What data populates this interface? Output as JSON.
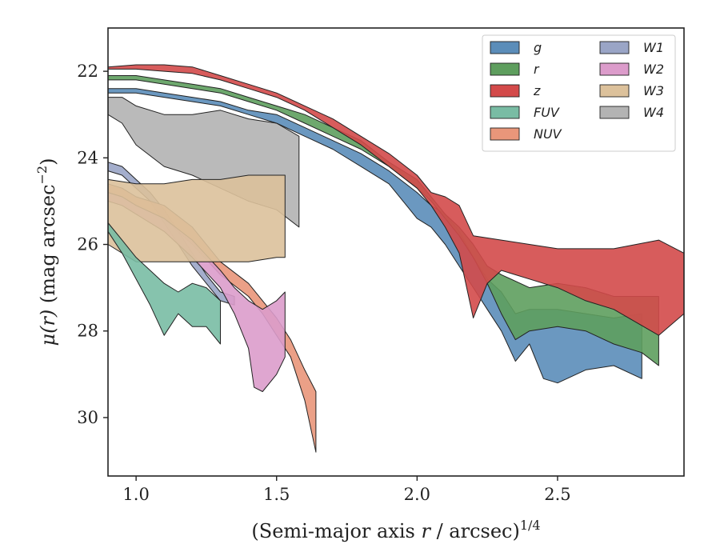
{
  "chart_data": {
    "type": "area",
    "xlabel_main": "(Semi-major axis ",
    "xlabel_var": "r",
    "xlabel_rest": " / arcsec)",
    "xlabel_exp": "1/4",
    "ylabel_var": "μ(r)",
    "ylabel_units": " (mag arcsec",
    "ylabel_exp": "−2",
    "ylabel_close": ")",
    "xlim": [
      0.9,
      2.95
    ],
    "ylim": [
      31.35,
      21.0
    ],
    "y_inverted": true,
    "x_ticks": [
      1.0,
      1.5,
      2.0,
      2.5
    ],
    "x_tick_labels": [
      "1.0",
      "1.5",
      "2.0",
      "2.5"
    ],
    "y_ticks": [
      22,
      24,
      26,
      28,
      30
    ],
    "y_tick_labels": [
      "22",
      "24",
      "26",
      "28",
      "30"
    ],
    "legend_position": "top-right",
    "legend_columns": 2,
    "series": [
      {
        "name": "W4",
        "color": "#b3b3b3",
        "upper": [
          [
            0.9,
            22.6
          ],
          [
            0.95,
            22.6
          ],
          [
            1.0,
            22.8
          ],
          [
            1.1,
            23.0
          ],
          [
            1.2,
            23.0
          ],
          [
            1.3,
            22.9
          ],
          [
            1.4,
            23.1
          ],
          [
            1.5,
            23.2
          ],
          [
            1.58,
            23.5
          ]
        ],
        "lower": [
          [
            0.9,
            23.0
          ],
          [
            0.95,
            23.2
          ],
          [
            1.0,
            23.7
          ],
          [
            1.1,
            24.2
          ],
          [
            1.2,
            24.4
          ],
          [
            1.3,
            24.7
          ],
          [
            1.4,
            25.0
          ],
          [
            1.5,
            25.2
          ],
          [
            1.58,
            25.6
          ]
        ]
      },
      {
        "name": "W1",
        "color": "#9aa5c6",
        "upper": [
          [
            0.9,
            24.1
          ],
          [
            0.95,
            24.2
          ],
          [
            1.0,
            24.5
          ],
          [
            1.05,
            24.8
          ],
          [
            1.1,
            25.2
          ],
          [
            1.15,
            25.7
          ],
          [
            1.2,
            26.2
          ],
          [
            1.25,
            26.7
          ],
          [
            1.3,
            27.1
          ],
          [
            1.35,
            27.2
          ]
        ],
        "lower": [
          [
            0.9,
            24.3
          ],
          [
            0.95,
            24.4
          ],
          [
            1.0,
            24.7
          ],
          [
            1.05,
            25.0
          ],
          [
            1.1,
            25.5
          ],
          [
            1.15,
            26.0
          ],
          [
            1.2,
            26.5
          ],
          [
            1.25,
            26.9
          ],
          [
            1.3,
            27.3
          ],
          [
            1.35,
            27.4
          ]
        ]
      },
      {
        "name": "NUV",
        "color": "#e9967a",
        "upper": [
          [
            0.9,
            24.6
          ],
          [
            0.95,
            24.7
          ],
          [
            1.0,
            24.9
          ],
          [
            1.1,
            25.1
          ],
          [
            1.2,
            25.6
          ],
          [
            1.3,
            26.4
          ],
          [
            1.4,
            26.9
          ],
          [
            1.45,
            27.3
          ],
          [
            1.5,
            27.7
          ],
          [
            1.55,
            28.2
          ],
          [
            1.6,
            28.9
          ],
          [
            1.64,
            29.4
          ]
        ],
        "lower": [
          [
            0.9,
            24.8
          ],
          [
            0.95,
            24.9
          ],
          [
            1.0,
            25.1
          ],
          [
            1.1,
            25.4
          ],
          [
            1.2,
            26.0
          ],
          [
            1.3,
            26.7
          ],
          [
            1.4,
            27.2
          ],
          [
            1.45,
            27.6
          ],
          [
            1.5,
            28.1
          ],
          [
            1.55,
            28.6
          ],
          [
            1.6,
            29.6
          ],
          [
            1.64,
            30.8
          ]
        ]
      },
      {
        "name": "W2",
        "color": "#dc9ccb",
        "upper": [
          [
            0.9,
            24.8
          ],
          [
            0.95,
            24.9
          ],
          [
            1.0,
            25.1
          ],
          [
            1.1,
            25.4
          ],
          [
            1.2,
            25.9
          ],
          [
            1.3,
            26.6
          ],
          [
            1.35,
            27.0
          ],
          [
            1.4,
            27.3
          ],
          [
            1.45,
            27.5
          ],
          [
            1.5,
            27.3
          ],
          [
            1.53,
            27.1
          ]
        ],
        "lower": [
          [
            0.9,
            25.0
          ],
          [
            0.95,
            25.1
          ],
          [
            1.0,
            25.3
          ],
          [
            1.1,
            25.7
          ],
          [
            1.2,
            26.3
          ],
          [
            1.3,
            27.0
          ],
          [
            1.35,
            27.6
          ],
          [
            1.4,
            28.4
          ],
          [
            1.42,
            29.3
          ],
          [
            1.45,
            29.4
          ],
          [
            1.5,
            29.0
          ],
          [
            1.53,
            28.6
          ]
        ]
      },
      {
        "name": "W3",
        "color": "#dcc19b",
        "upper": [
          [
            0.9,
            24.5
          ],
          [
            1.0,
            24.6
          ],
          [
            1.1,
            24.6
          ],
          [
            1.2,
            24.5
          ],
          [
            1.3,
            24.5
          ],
          [
            1.4,
            24.4
          ],
          [
            1.5,
            24.4
          ],
          [
            1.53,
            24.4
          ]
        ],
        "lower": [
          [
            0.9,
            26.0
          ],
          [
            1.0,
            26.4
          ],
          [
            1.1,
            26.4
          ],
          [
            1.2,
            26.4
          ],
          [
            1.3,
            26.4
          ],
          [
            1.4,
            26.4
          ],
          [
            1.5,
            26.3
          ],
          [
            1.53,
            26.3
          ]
        ]
      },
      {
        "name": "FUV",
        "color": "#79bca4",
        "upper": [
          [
            0.9,
            25.5
          ],
          [
            0.95,
            25.9
          ],
          [
            1.0,
            26.3
          ],
          [
            1.05,
            26.6
          ],
          [
            1.1,
            26.9
          ],
          [
            1.15,
            27.1
          ],
          [
            1.2,
            26.9
          ],
          [
            1.25,
            27.0
          ],
          [
            1.3,
            27.3
          ]
        ],
        "lower": [
          [
            0.9,
            25.7
          ],
          [
            0.95,
            26.2
          ],
          [
            1.0,
            26.8
          ],
          [
            1.05,
            27.4
          ],
          [
            1.1,
            28.1
          ],
          [
            1.15,
            27.6
          ],
          [
            1.2,
            27.9
          ],
          [
            1.25,
            27.9
          ],
          [
            1.3,
            28.3
          ]
        ]
      },
      {
        "name": "g",
        "color": "#5b8db9",
        "upper": [
          [
            0.9,
            22.4
          ],
          [
            1.0,
            22.4
          ],
          [
            1.1,
            22.5
          ],
          [
            1.2,
            22.6
          ],
          [
            1.3,
            22.7
          ],
          [
            1.4,
            22.9
          ],
          [
            1.5,
            23.0
          ],
          [
            1.6,
            23.3
          ],
          [
            1.7,
            23.6
          ],
          [
            1.8,
            23.9
          ],
          [
            1.9,
            24.3
          ],
          [
            2.0,
            24.8
          ],
          [
            2.05,
            25.1
          ],
          [
            2.1,
            25.3
          ],
          [
            2.15,
            25.7
          ],
          [
            2.2,
            26.3
          ],
          [
            2.25,
            26.8
          ],
          [
            2.3,
            27.1
          ],
          [
            2.35,
            27.6
          ],
          [
            2.4,
            27.5
          ],
          [
            2.5,
            27.5
          ],
          [
            2.6,
            27.6
          ],
          [
            2.7,
            27.7
          ],
          [
            2.8,
            27.6
          ]
        ],
        "lower": [
          [
            0.9,
            22.5
          ],
          [
            1.0,
            22.5
          ],
          [
            1.1,
            22.6
          ],
          [
            1.2,
            22.7
          ],
          [
            1.3,
            22.8
          ],
          [
            1.4,
            23.0
          ],
          [
            1.5,
            23.2
          ],
          [
            1.6,
            23.5
          ],
          [
            1.7,
            23.8
          ],
          [
            1.8,
            24.2
          ],
          [
            1.9,
            24.6
          ],
          [
            1.95,
            25.0
          ],
          [
            2.0,
            25.4
          ],
          [
            2.05,
            25.6
          ],
          [
            2.1,
            26.0
          ],
          [
            2.15,
            26.5
          ],
          [
            2.2,
            27.0
          ],
          [
            2.25,
            27.5
          ],
          [
            2.3,
            28.0
          ],
          [
            2.35,
            28.7
          ],
          [
            2.4,
            28.3
          ],
          [
            2.45,
            29.1
          ],
          [
            2.5,
            29.2
          ],
          [
            2.6,
            28.9
          ],
          [
            2.7,
            28.8
          ],
          [
            2.8,
            29.1
          ]
        ]
      },
      {
        "name": "r",
        "color": "#5e9e5e",
        "upper": [
          [
            0.9,
            22.1
          ],
          [
            1.0,
            22.1
          ],
          [
            1.1,
            22.2
          ],
          [
            1.2,
            22.3
          ],
          [
            1.3,
            22.4
          ],
          [
            1.4,
            22.6
          ],
          [
            1.5,
            22.8
          ],
          [
            1.6,
            23.0
          ],
          [
            1.7,
            23.3
          ],
          [
            1.8,
            23.6
          ],
          [
            1.9,
            24.1
          ],
          [
            2.0,
            24.5
          ],
          [
            2.05,
            24.9
          ],
          [
            2.1,
            25.3
          ],
          [
            2.15,
            25.6
          ],
          [
            2.2,
            26.0
          ],
          [
            2.25,
            26.5
          ],
          [
            2.3,
            26.7
          ],
          [
            2.4,
            27.0
          ],
          [
            2.5,
            26.9
          ],
          [
            2.6,
            27.0
          ],
          [
            2.7,
            27.2
          ],
          [
            2.86,
            27.2
          ]
        ],
        "lower": [
          [
            0.9,
            22.2
          ],
          [
            1.0,
            22.2
          ],
          [
            1.1,
            22.3
          ],
          [
            1.2,
            22.4
          ],
          [
            1.3,
            22.5
          ],
          [
            1.4,
            22.7
          ],
          [
            1.5,
            22.9
          ],
          [
            1.6,
            23.2
          ],
          [
            1.7,
            23.5
          ],
          [
            1.8,
            23.8
          ],
          [
            1.9,
            24.2
          ],
          [
            2.0,
            24.7
          ],
          [
            2.05,
            25.0
          ],
          [
            2.1,
            25.4
          ],
          [
            2.15,
            25.8
          ],
          [
            2.2,
            26.3
          ],
          [
            2.25,
            26.9
          ],
          [
            2.3,
            27.6
          ],
          [
            2.35,
            28.2
          ],
          [
            2.4,
            28.0
          ],
          [
            2.5,
            27.9
          ],
          [
            2.6,
            28.0
          ],
          [
            2.7,
            28.3
          ],
          [
            2.8,
            28.5
          ],
          [
            2.86,
            28.8
          ]
        ]
      },
      {
        "name": "z",
        "color": "#d34a4a",
        "upper": [
          [
            0.9,
            21.9
          ],
          [
            1.0,
            21.85
          ],
          [
            1.1,
            21.85
          ],
          [
            1.2,
            21.9
          ],
          [
            1.3,
            22.1
          ],
          [
            1.4,
            22.3
          ],
          [
            1.5,
            22.5
          ],
          [
            1.6,
            22.8
          ],
          [
            1.7,
            23.1
          ],
          [
            1.8,
            23.5
          ],
          [
            1.9,
            23.9
          ],
          [
            2.0,
            24.4
          ],
          [
            2.05,
            24.8
          ],
          [
            2.1,
            24.9
          ],
          [
            2.15,
            25.1
          ],
          [
            2.2,
            25.8
          ],
          [
            2.3,
            25.9
          ],
          [
            2.4,
            26.0
          ],
          [
            2.5,
            26.1
          ],
          [
            2.6,
            26.1
          ],
          [
            2.7,
            26.1
          ],
          [
            2.86,
            25.9
          ],
          [
            2.95,
            26.2
          ]
        ],
        "lower": [
          [
            0.9,
            21.95
          ],
          [
            1.0,
            21.95
          ],
          [
            1.1,
            22.0
          ],
          [
            1.2,
            22.05
          ],
          [
            1.3,
            22.2
          ],
          [
            1.4,
            22.4
          ],
          [
            1.5,
            22.6
          ],
          [
            1.6,
            22.9
          ],
          [
            1.7,
            23.3
          ],
          [
            1.8,
            23.7
          ],
          [
            1.9,
            24.2
          ],
          [
            2.0,
            24.7
          ],
          [
            2.05,
            25.1
          ],
          [
            2.1,
            25.6
          ],
          [
            2.15,
            26.2
          ],
          [
            2.2,
            27.7
          ],
          [
            2.25,
            26.9
          ],
          [
            2.3,
            26.6
          ],
          [
            2.4,
            26.8
          ],
          [
            2.5,
            27.0
          ],
          [
            2.6,
            27.3
          ],
          [
            2.7,
            27.5
          ],
          [
            2.86,
            28.1
          ],
          [
            2.95,
            27.6
          ]
        ]
      }
    ],
    "legend_order": [
      "g",
      "r",
      "z",
      "FUV",
      "NUV",
      "W1",
      "W2",
      "W3",
      "W4"
    ]
  }
}
